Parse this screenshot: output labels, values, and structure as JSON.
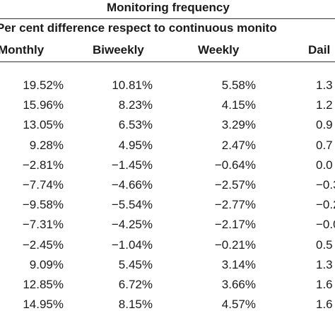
{
  "table": {
    "group_title": "Monitoring frequency",
    "group_subtitle": "Per cent difference respect to continuous monito",
    "columns": [
      "Monthly",
      "Biweekly",
      "Weekly",
      "Dail"
    ],
    "rows": [
      [
        "19.52%",
        "10.81%",
        "5.58%",
        "1.3"
      ],
      [
        "15.96%",
        "8.23%",
        "4.15%",
        "1.2"
      ],
      [
        "13.05%",
        "6.53%",
        "3.29%",
        "0.9"
      ],
      [
        "9.28%",
        "4.95%",
        "2.47%",
        "0.7"
      ],
      [
        "−2.81%",
        "−1.45%",
        "−0.64%",
        "0.0"
      ],
      [
        "−7.74%",
        "−4.66%",
        "−2.57%",
        "−0.3"
      ],
      [
        "−9.58%",
        "−5.54%",
        "−2.77%",
        "−0.2"
      ],
      [
        "−7.31%",
        "−4.25%",
        "−2.17%",
        "−0.0"
      ],
      [
        "−2.45%",
        "−1.04%",
        "−0.21%",
        "0.5"
      ],
      [
        "9.09%",
        "5.45%",
        "3.14%",
        "1.3"
      ],
      [
        "12.85%",
        "6.72%",
        "3.66%",
        "1.6"
      ],
      [
        "14.95%",
        "8.15%",
        "4.57%",
        "1.6"
      ]
    ]
  }
}
